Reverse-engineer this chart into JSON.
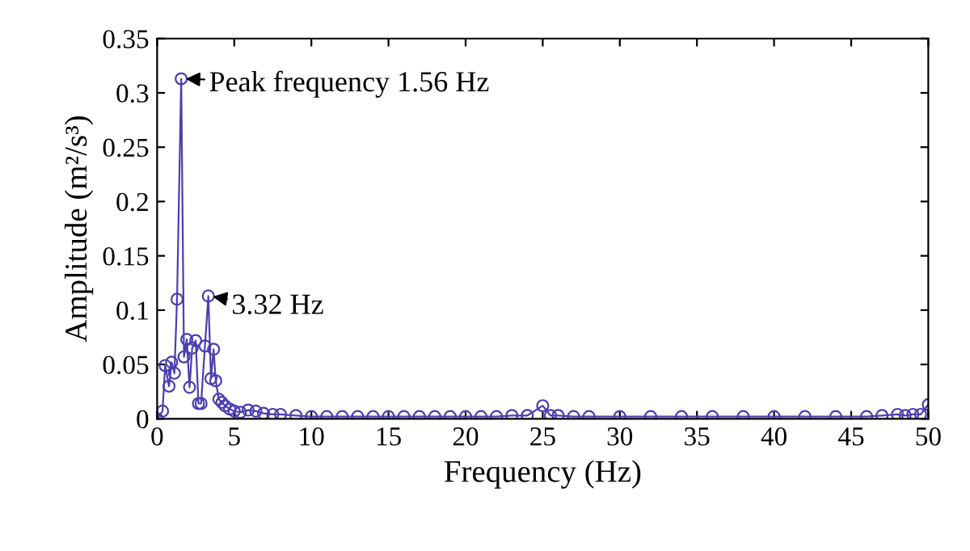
{
  "chart_data": {
    "type": "line",
    "xlabel": "Frequency (Hz)",
    "ylabel": "Amplitude (m²/s³)",
    "series": [
      {
        "color": "#4b3fb0",
        "x": [
          0,
          0.35,
          0.52,
          0.77,
          0.94,
          1.12,
          1.29,
          1.56,
          1.74,
          1.92,
          2.1,
          2.27,
          2.5,
          2.68,
          2.85,
          3.1,
          3.32,
          3.49,
          3.66,
          3.8,
          4.0,
          4.2,
          4.4,
          4.7,
          5.0,
          5.4,
          5.9,
          6.4,
          6.9,
          7.5,
          8,
          9,
          10,
          11,
          12,
          13,
          14,
          15,
          16,
          17,
          18,
          19,
          20,
          21,
          22,
          23,
          24,
          25,
          25.5,
          26,
          27,
          28,
          30,
          32,
          34,
          36,
          38,
          40,
          42,
          44,
          46,
          47,
          48,
          48.5,
          49,
          49.5,
          50
        ],
        "values": [
          0,
          0.007,
          0.049,
          0.03,
          0.052,
          0.042,
          0.11,
          0.313,
          0.057,
          0.073,
          0.029,
          0.065,
          0.072,
          0.014,
          0.014,
          0.067,
          0.113,
          0.037,
          0.064,
          0.035,
          0.018,
          0.015,
          0.012,
          0.009,
          0.007,
          0.006,
          0.008,
          0.007,
          0.005,
          0.004,
          0.004,
          0.003,
          0.002,
          0.002,
          0.002,
          0.002,
          0.002,
          0.002,
          0.002,
          0.002,
          0.002,
          0.002,
          0.002,
          0.002,
          0.002,
          0.003,
          0.003,
          0.012,
          0.003,
          0.003,
          0.002,
          0.002,
          0.002,
          0.002,
          0.002,
          0.002,
          0.002,
          0.002,
          0.002,
          0.002,
          0.002,
          0.003,
          0.004,
          0.003,
          0.004,
          0.004,
          0.013
        ]
      }
    ],
    "marker": "circle",
    "line_style": "solid",
    "grid": false,
    "legend": false,
    "xlim": [
      0,
      50
    ],
    "xticks": [
      0,
      5,
      10,
      15,
      20,
      25,
      30,
      35,
      40,
      45,
      50
    ],
    "ylim": [
      0,
      0.35
    ],
    "yticks": [
      0,
      0.05,
      0.1,
      0.15,
      0.2,
      0.25,
      0.3,
      0.35
    ],
    "annotations": [
      {
        "text": "Peak frequency 1.56 Hz",
        "x": 1.56,
        "y": 0.313
      },
      {
        "text": "3.32 Hz",
        "x": 3.32,
        "y": 0.113
      }
    ]
  }
}
